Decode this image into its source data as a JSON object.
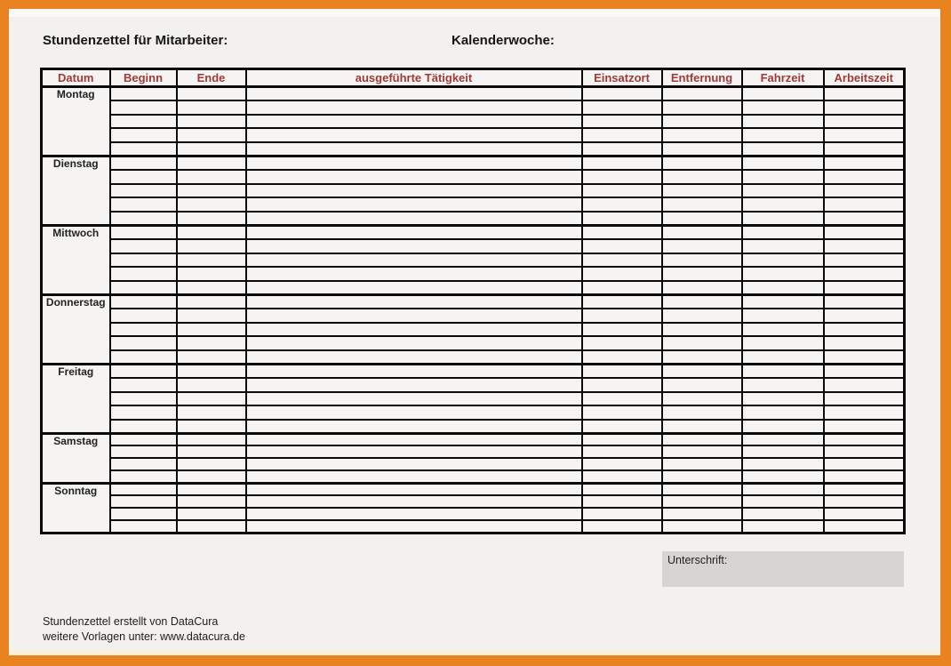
{
  "document": {
    "heading_left": "Stundenzettel für Mitarbeiter:",
    "heading_right": "Kalenderwoche:"
  },
  "table": {
    "columns": [
      "Datum",
      "Beginn",
      "Ende",
      "ausgeführte Tätigkeit",
      "Einsatzort",
      "Entfernung",
      "Fahrzeit",
      "Arbeitszeit"
    ],
    "column_keys": [
      "datum",
      "beginn",
      "ende",
      "taetigkeit",
      "einsatzort",
      "entfernung",
      "fahrzeit",
      "arbeitszeit"
    ],
    "days": [
      {
        "label": "Montag",
        "rows": 5
      },
      {
        "label": "Dienstag",
        "rows": 5
      },
      {
        "label": "Mittwoch",
        "rows": 5
      },
      {
        "label": "Donnerstag",
        "rows": 5
      },
      {
        "label": "Freitag",
        "rows": 5
      },
      {
        "label": "Samstag",
        "rows": 4
      },
      {
        "label": "Sonntag",
        "rows": 4
      }
    ],
    "empty_cell_value": ""
  },
  "signature": {
    "label": "Unterschrift:"
  },
  "footer": {
    "line1": "Stundenzettel erstellt von DataCura",
    "line2": "weitere Vorlagen unter: www.datacura.de"
  },
  "colors": {
    "frame_orange": "#E8831F",
    "header_text_red": "#9E3A38",
    "grid_black": "#0A0A0A",
    "page_background": "#F2F1EF",
    "signature_background": "#D6D5D3"
  }
}
